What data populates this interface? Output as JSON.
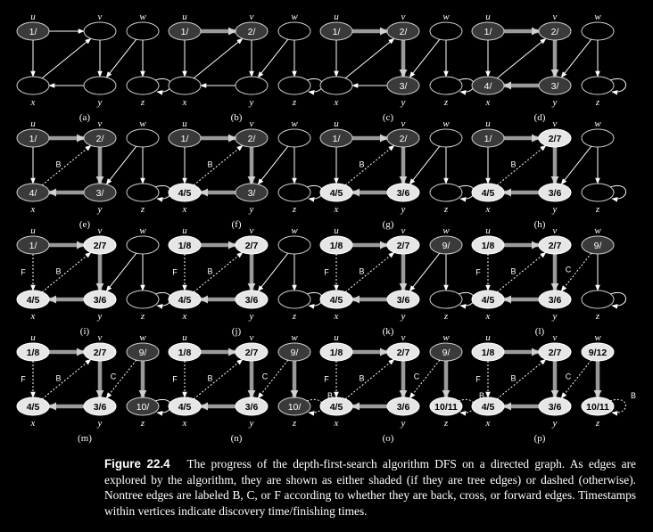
{
  "caption": {
    "label": "Figure 22.4",
    "text": "The progress of the depth-first-search algorithm DFS on a directed graph. As edges are explored by the algorithm, they are shown as either shaded (if they are tree edges) or dashed (otherwise). Nontree edges are labeled B, C, or F according to whether they are back, cross, or forward edges. Timestamps within vertices indicate discovery time/finishing times."
  },
  "vertices": [
    "u",
    "v",
    "w",
    "x",
    "y",
    "z"
  ],
  "colors": {
    "white": "#000000",
    "gray": "#3a3a3a",
    "black": "#e6e6e6",
    "tree_edge": "#9a9a9a",
    "edge": "#ffffff"
  },
  "panels": [
    {
      "label": "(a)",
      "vertices": {
        "u": {
          "s": "gray",
          "t": "1/"
        },
        "v": {
          "s": "white",
          "t": ""
        },
        "w": {
          "s": "white",
          "t": ""
        },
        "x": {
          "s": "white",
          "t": ""
        },
        "y": {
          "s": "white",
          "t": ""
        },
        "z": {
          "s": "white",
          "t": ""
        }
      },
      "edges": {
        "u-v": {
          "k": "normal"
        },
        "u-x": {
          "k": "normal"
        },
        "x-v": {
          "k": "normal"
        },
        "v-y": {
          "k": "normal"
        },
        "y-x": {
          "k": "normal"
        },
        "w-y": {
          "k": "normal"
        },
        "w-z": {
          "k": "normal"
        },
        "z-z": {
          "k": "normal"
        }
      }
    },
    {
      "label": "(b)",
      "vertices": {
        "u": {
          "s": "gray",
          "t": "1/"
        },
        "v": {
          "s": "gray",
          "t": "2/"
        },
        "w": {
          "s": "white",
          "t": ""
        },
        "x": {
          "s": "white",
          "t": ""
        },
        "y": {
          "s": "white",
          "t": ""
        },
        "z": {
          "s": "white",
          "t": ""
        }
      },
      "edges": {
        "u-v": {
          "k": "tree"
        },
        "u-x": {
          "k": "normal"
        },
        "x-v": {
          "k": "normal"
        },
        "v-y": {
          "k": "normal"
        },
        "y-x": {
          "k": "normal"
        },
        "w-y": {
          "k": "normal"
        },
        "w-z": {
          "k": "normal"
        },
        "z-z": {
          "k": "normal"
        }
      }
    },
    {
      "label": "(c)",
      "vertices": {
        "u": {
          "s": "gray",
          "t": "1/"
        },
        "v": {
          "s": "gray",
          "t": "2/"
        },
        "w": {
          "s": "white",
          "t": ""
        },
        "x": {
          "s": "white",
          "t": ""
        },
        "y": {
          "s": "gray",
          "t": "3/"
        },
        "z": {
          "s": "white",
          "t": ""
        }
      },
      "edges": {
        "u-v": {
          "k": "tree"
        },
        "u-x": {
          "k": "normal"
        },
        "x-v": {
          "k": "normal"
        },
        "v-y": {
          "k": "tree"
        },
        "y-x": {
          "k": "normal"
        },
        "w-y": {
          "k": "normal"
        },
        "w-z": {
          "k": "normal"
        },
        "z-z": {
          "k": "normal"
        }
      }
    },
    {
      "label": "(d)",
      "vertices": {
        "u": {
          "s": "gray",
          "t": "1/"
        },
        "v": {
          "s": "gray",
          "t": "2/"
        },
        "w": {
          "s": "white",
          "t": ""
        },
        "x": {
          "s": "gray",
          "t": "4/"
        },
        "y": {
          "s": "gray",
          "t": "3/"
        },
        "z": {
          "s": "white",
          "t": ""
        }
      },
      "edges": {
        "u-v": {
          "k": "tree"
        },
        "u-x": {
          "k": "normal"
        },
        "x-v": {
          "k": "normal"
        },
        "v-y": {
          "k": "tree"
        },
        "y-x": {
          "k": "tree"
        },
        "w-y": {
          "k": "normal"
        },
        "w-z": {
          "k": "normal"
        },
        "z-z": {
          "k": "normal"
        }
      }
    },
    {
      "label": "(e)",
      "vertices": {
        "u": {
          "s": "gray",
          "t": "1/"
        },
        "v": {
          "s": "gray",
          "t": "2/"
        },
        "w": {
          "s": "white",
          "t": ""
        },
        "x": {
          "s": "gray",
          "t": "4/"
        },
        "y": {
          "s": "gray",
          "t": "3/"
        },
        "z": {
          "s": "white",
          "t": ""
        }
      },
      "edges": {
        "u-v": {
          "k": "tree"
        },
        "u-x": {
          "k": "normal"
        },
        "x-v": {
          "k": "dashed",
          "l": "B"
        },
        "v-y": {
          "k": "tree"
        },
        "y-x": {
          "k": "tree"
        },
        "w-y": {
          "k": "normal"
        },
        "w-z": {
          "k": "normal"
        },
        "z-z": {
          "k": "normal"
        }
      }
    },
    {
      "label": "(f)",
      "vertices": {
        "u": {
          "s": "gray",
          "t": "1/"
        },
        "v": {
          "s": "gray",
          "t": "2/"
        },
        "w": {
          "s": "white",
          "t": ""
        },
        "x": {
          "s": "black",
          "t": "4/5"
        },
        "y": {
          "s": "gray",
          "t": "3/"
        },
        "z": {
          "s": "white",
          "t": ""
        }
      },
      "edges": {
        "u-v": {
          "k": "tree"
        },
        "u-x": {
          "k": "normal"
        },
        "x-v": {
          "k": "dashed",
          "l": "B"
        },
        "v-y": {
          "k": "tree"
        },
        "y-x": {
          "k": "tree"
        },
        "w-y": {
          "k": "normal"
        },
        "w-z": {
          "k": "normal"
        },
        "z-z": {
          "k": "normal"
        }
      }
    },
    {
      "label": "(g)",
      "vertices": {
        "u": {
          "s": "gray",
          "t": "1/"
        },
        "v": {
          "s": "gray",
          "t": "2/"
        },
        "w": {
          "s": "white",
          "t": ""
        },
        "x": {
          "s": "black",
          "t": "4/5"
        },
        "y": {
          "s": "black",
          "t": "3/6"
        },
        "z": {
          "s": "white",
          "t": ""
        }
      },
      "edges": {
        "u-v": {
          "k": "tree"
        },
        "u-x": {
          "k": "normal"
        },
        "x-v": {
          "k": "dashed",
          "l": "B"
        },
        "v-y": {
          "k": "tree"
        },
        "y-x": {
          "k": "tree"
        },
        "w-y": {
          "k": "normal"
        },
        "w-z": {
          "k": "normal"
        },
        "z-z": {
          "k": "normal"
        }
      }
    },
    {
      "label": "(h)",
      "vertices": {
        "u": {
          "s": "gray",
          "t": "1/"
        },
        "v": {
          "s": "black",
          "t": "2/7"
        },
        "w": {
          "s": "white",
          "t": ""
        },
        "x": {
          "s": "black",
          "t": "4/5"
        },
        "y": {
          "s": "black",
          "t": "3/6"
        },
        "z": {
          "s": "white",
          "t": ""
        }
      },
      "edges": {
        "u-v": {
          "k": "tree"
        },
        "u-x": {
          "k": "normal"
        },
        "x-v": {
          "k": "dashed",
          "l": "B"
        },
        "v-y": {
          "k": "tree"
        },
        "y-x": {
          "k": "tree"
        },
        "w-y": {
          "k": "normal"
        },
        "w-z": {
          "k": "normal"
        },
        "z-z": {
          "k": "normal"
        }
      }
    },
    {
      "label": "(i)",
      "vertices": {
        "u": {
          "s": "gray",
          "t": "1/"
        },
        "v": {
          "s": "black",
          "t": "2/7"
        },
        "w": {
          "s": "white",
          "t": ""
        },
        "x": {
          "s": "black",
          "t": "4/5"
        },
        "y": {
          "s": "black",
          "t": "3/6"
        },
        "z": {
          "s": "white",
          "t": ""
        }
      },
      "edges": {
        "u-v": {
          "k": "tree"
        },
        "u-x": {
          "k": "dashed",
          "l": "F"
        },
        "x-v": {
          "k": "dashed",
          "l": "B"
        },
        "v-y": {
          "k": "tree"
        },
        "y-x": {
          "k": "tree"
        },
        "w-y": {
          "k": "normal"
        },
        "w-z": {
          "k": "normal"
        },
        "z-z": {
          "k": "normal"
        }
      }
    },
    {
      "label": "(j)",
      "vertices": {
        "u": {
          "s": "black",
          "t": "1/8"
        },
        "v": {
          "s": "black",
          "t": "2/7"
        },
        "w": {
          "s": "white",
          "t": ""
        },
        "x": {
          "s": "black",
          "t": "4/5"
        },
        "y": {
          "s": "black",
          "t": "3/6"
        },
        "z": {
          "s": "white",
          "t": ""
        }
      },
      "edges": {
        "u-v": {
          "k": "tree"
        },
        "u-x": {
          "k": "dashed",
          "l": "F"
        },
        "x-v": {
          "k": "dashed",
          "l": "B"
        },
        "v-y": {
          "k": "tree"
        },
        "y-x": {
          "k": "tree"
        },
        "w-y": {
          "k": "normal"
        },
        "w-z": {
          "k": "normal"
        },
        "z-z": {
          "k": "normal"
        }
      }
    },
    {
      "label": "(k)",
      "vertices": {
        "u": {
          "s": "black",
          "t": "1/8"
        },
        "v": {
          "s": "black",
          "t": "2/7"
        },
        "w": {
          "s": "gray",
          "t": "9/"
        },
        "x": {
          "s": "black",
          "t": "4/5"
        },
        "y": {
          "s": "black",
          "t": "3/6"
        },
        "z": {
          "s": "white",
          "t": ""
        }
      },
      "edges": {
        "u-v": {
          "k": "tree"
        },
        "u-x": {
          "k": "dashed",
          "l": "F"
        },
        "x-v": {
          "k": "dashed",
          "l": "B"
        },
        "v-y": {
          "k": "tree"
        },
        "y-x": {
          "k": "tree"
        },
        "w-y": {
          "k": "normal"
        },
        "w-z": {
          "k": "normal"
        },
        "z-z": {
          "k": "normal"
        }
      }
    },
    {
      "label": "(l)",
      "vertices": {
        "u": {
          "s": "black",
          "t": "1/8"
        },
        "v": {
          "s": "black",
          "t": "2/7"
        },
        "w": {
          "s": "gray",
          "t": "9/"
        },
        "x": {
          "s": "black",
          "t": "4/5"
        },
        "y": {
          "s": "black",
          "t": "3/6"
        },
        "z": {
          "s": "white",
          "t": ""
        }
      },
      "edges": {
        "u-v": {
          "k": "tree"
        },
        "u-x": {
          "k": "dashed",
          "l": "F"
        },
        "x-v": {
          "k": "dashed",
          "l": "B"
        },
        "v-y": {
          "k": "tree"
        },
        "y-x": {
          "k": "tree"
        },
        "w-y": {
          "k": "dashed",
          "l": "C"
        },
        "w-z": {
          "k": "normal"
        },
        "z-z": {
          "k": "normal"
        }
      }
    },
    {
      "label": "(m)",
      "vertices": {
        "u": {
          "s": "black",
          "t": "1/8"
        },
        "v": {
          "s": "black",
          "t": "2/7"
        },
        "w": {
          "s": "gray",
          "t": "9/"
        },
        "x": {
          "s": "black",
          "t": "4/5"
        },
        "y": {
          "s": "black",
          "t": "3/6"
        },
        "z": {
          "s": "gray",
          "t": "10/"
        }
      },
      "edges": {
        "u-v": {
          "k": "tree"
        },
        "u-x": {
          "k": "dashed",
          "l": "F"
        },
        "x-v": {
          "k": "dashed",
          "l": "B"
        },
        "v-y": {
          "k": "tree"
        },
        "y-x": {
          "k": "tree"
        },
        "w-y": {
          "k": "dashed",
          "l": "C"
        },
        "w-z": {
          "k": "tree"
        },
        "z-z": {
          "k": "normal"
        }
      }
    },
    {
      "label": "(n)",
      "vertices": {
        "u": {
          "s": "black",
          "t": "1/8"
        },
        "v": {
          "s": "black",
          "t": "2/7"
        },
        "w": {
          "s": "gray",
          "t": "9/"
        },
        "x": {
          "s": "black",
          "t": "4/5"
        },
        "y": {
          "s": "black",
          "t": "3/6"
        },
        "z": {
          "s": "gray",
          "t": "10/"
        }
      },
      "edges": {
        "u-v": {
          "k": "tree"
        },
        "u-x": {
          "k": "dashed",
          "l": "F"
        },
        "x-v": {
          "k": "dashed",
          "l": "B"
        },
        "v-y": {
          "k": "tree"
        },
        "y-x": {
          "k": "tree"
        },
        "w-y": {
          "k": "dashed",
          "l": "C"
        },
        "w-z": {
          "k": "tree"
        },
        "z-z": {
          "k": "dashed",
          "l": "B"
        }
      }
    },
    {
      "label": "(o)",
      "vertices": {
        "u": {
          "s": "black",
          "t": "1/8"
        },
        "v": {
          "s": "black",
          "t": "2/7"
        },
        "w": {
          "s": "gray",
          "t": "9/"
        },
        "x": {
          "s": "black",
          "t": "4/5"
        },
        "y": {
          "s": "black",
          "t": "3/6"
        },
        "z": {
          "s": "black",
          "t": "10/11"
        }
      },
      "edges": {
        "u-v": {
          "k": "tree"
        },
        "u-x": {
          "k": "dashed",
          "l": "F"
        },
        "x-v": {
          "k": "dashed",
          "l": "B"
        },
        "v-y": {
          "k": "tree"
        },
        "y-x": {
          "k": "tree"
        },
        "w-y": {
          "k": "dashed",
          "l": "C"
        },
        "w-z": {
          "k": "tree"
        },
        "z-z": {
          "k": "dashed",
          "l": "B"
        }
      }
    },
    {
      "label": "(p)",
      "vertices": {
        "u": {
          "s": "black",
          "t": "1/8"
        },
        "v": {
          "s": "black",
          "t": "2/7"
        },
        "w": {
          "s": "black",
          "t": "9/12"
        },
        "x": {
          "s": "black",
          "t": "4/5"
        },
        "y": {
          "s": "black",
          "t": "3/6"
        },
        "z": {
          "s": "black",
          "t": "10/11"
        }
      },
      "edges": {
        "u-v": {
          "k": "tree"
        },
        "u-x": {
          "k": "dashed",
          "l": "F"
        },
        "x-v": {
          "k": "dashed",
          "l": "B"
        },
        "v-y": {
          "k": "tree"
        },
        "y-x": {
          "k": "tree"
        },
        "w-y": {
          "k": "dashed",
          "l": "C"
        },
        "w-z": {
          "k": "tree"
        },
        "z-z": {
          "k": "dashed",
          "l": "B"
        }
      }
    }
  ]
}
